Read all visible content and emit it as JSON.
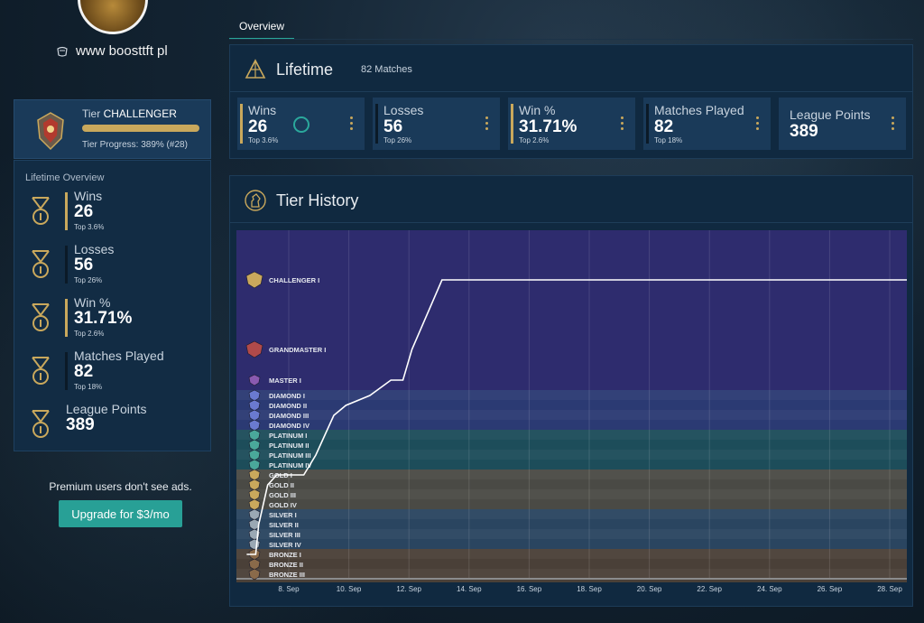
{
  "profile": {
    "website": "www boosttft pl"
  },
  "tier": {
    "prefix": "Tier",
    "name": "CHALLENGER",
    "progress_text": "Tier Progress: 389% (#28)",
    "progress_fraction": 1.0
  },
  "lifetime_overview": {
    "title": "Lifetime Overview",
    "stats": [
      {
        "label": "Wins",
        "value": "26",
        "sub": "Top 3.6%"
      },
      {
        "label": "Losses",
        "value": "56",
        "sub": "Top 26%"
      },
      {
        "label": "Win %",
        "value": "31.71%",
        "sub": "Top 2.6%"
      },
      {
        "label": "Matches Played",
        "value": "82",
        "sub": "Top 18%"
      },
      {
        "label": "League Points",
        "value": "389"
      }
    ]
  },
  "ads": {
    "text": "Premium users don't see ads.",
    "button": "Upgrade for $3/mo"
  },
  "tabs": [
    {
      "label": "Overview"
    }
  ],
  "lifetime": {
    "title": "Lifetime",
    "matches": "82 Matches",
    "cards": [
      {
        "label": "Wins",
        "value": "26",
        "sub": "Top 3.6%"
      },
      {
        "label": "Losses",
        "value": "56",
        "sub": "Top 26%"
      },
      {
        "label": "Win %",
        "value": "31.71%",
        "sub": "Top 2.6%"
      },
      {
        "label": "Matches Played",
        "value": "82",
        "sub": "Top 18%"
      },
      {
        "label": "League Points",
        "value": "389"
      }
    ]
  },
  "tier_history": {
    "title": "Tier History"
  },
  "colors": {
    "accent_gold": "#c9a85c",
    "accent_teal": "#28a096"
  },
  "chart_data": {
    "type": "line",
    "x_tick_labels": [
      "8. Sep",
      "10. Sep",
      "12. Sep",
      "14. Sep",
      "16. Sep",
      "18. Sep",
      "20. Sep",
      "22. Sep",
      "24. Sep",
      "26. Sep",
      "28. Sep"
    ],
    "tier_labels": [
      "CHALLENGER I",
      "GRANDMASTER I",
      "MASTER I",
      "DIAMOND I",
      "DIAMOND II",
      "DIAMOND III",
      "DIAMOND IV",
      "PLATINUM I",
      "PLATINUM II",
      "PLATINUM III",
      "PLATINUM IV",
      "GOLD I",
      "GOLD II",
      "GOLD III",
      "GOLD IV",
      "SILVER I",
      "SILVER II",
      "SILVER III",
      "SILVER IV",
      "BRONZE I",
      "BRONZE II",
      "BRONZE III"
    ],
    "series": [
      {
        "points": [
          [
            "6.6. Sep",
            "BRONZE I"
          ],
          [
            "6.9. Sep",
            "BRONZE I"
          ],
          [
            "7.0. Sep",
            "SILVER II"
          ],
          [
            "7.3. Sep",
            "GOLD II"
          ],
          [
            "7.6. Sep",
            "GOLD I"
          ],
          [
            "8.0. Sep",
            "GOLD I"
          ],
          [
            "8.5. Sep",
            "GOLD I"
          ],
          [
            "8.9. Sep",
            "PLATINUM III"
          ],
          [
            "9.2. Sep",
            "PLATINUM I"
          ],
          [
            "9.5. Sep",
            "DIAMOND III"
          ],
          [
            "9.9. Sep",
            "DIAMOND II"
          ],
          [
            "10.7. Sep",
            "DIAMOND I"
          ],
          [
            "11.4. Sep",
            "MASTER I"
          ],
          [
            "11.8. Sep",
            "MASTER I"
          ],
          [
            "12.1. Sep",
            "GRANDMASTER I"
          ],
          [
            "13.1. Sep",
            "CHALLENGER I"
          ],
          [
            "14.6. Sep",
            "CHALLENGER I"
          ],
          [
            "15.6. Sep",
            "CHALLENGER I"
          ],
          [
            "26.0. Sep",
            "CHALLENGER I"
          ],
          [
            "28.9. Sep",
            "CHALLENGER I"
          ]
        ]
      }
    ],
    "grid": true
  }
}
